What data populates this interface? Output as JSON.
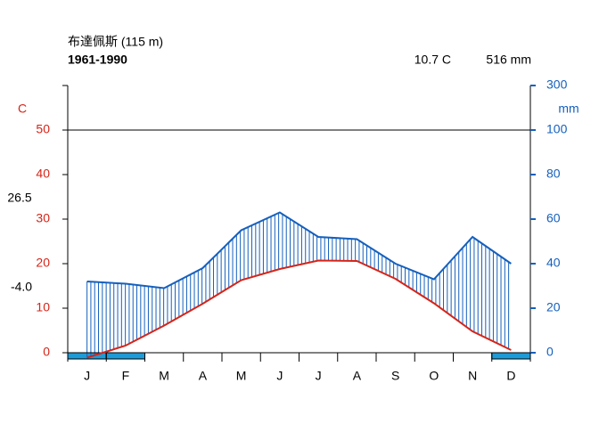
{
  "chart_data": {
    "type": "climate",
    "station": "布達佩斯 (115 m)",
    "period": "1961-1990",
    "mean_temp": "10.7 C",
    "total_precip": "516 mm",
    "temp_unit": "C",
    "precip_unit": "mm",
    "max_warm": "26.5",
    "min_cold": "-4.0",
    "categories": [
      "J",
      "F",
      "M",
      "A",
      "M",
      "J",
      "J",
      "A",
      "S",
      "O",
      "N",
      "D"
    ],
    "series": [
      {
        "name": "temperature",
        "color": "#d62418",
        "values": [
          -1.1,
          1.6,
          6.1,
          11.0,
          16.3,
          18.8,
          20.7,
          20.6,
          16.6,
          11.1,
          4.8,
          0.6
        ]
      },
      {
        "name": "precipitation",
        "color": "#1560bd",
        "axis": "y2",
        "values": [
          32,
          31,
          29,
          38,
          55,
          63,
          52,
          51,
          40,
          33,
          52,
          40
        ]
      }
    ],
    "frost": [
      true,
      true,
      false,
      false,
      false,
      false,
      false,
      false,
      false,
      false,
      false,
      true
    ],
    "frost_color": "#1e9bd7",
    "ylim": [
      0,
      60
    ],
    "yticks": [
      0,
      10,
      20,
      30,
      40,
      50
    ],
    "y2lim": [
      0,
      300
    ],
    "y2ticks": [
      0,
      20,
      40,
      60,
      80,
      100,
      300
    ]
  }
}
